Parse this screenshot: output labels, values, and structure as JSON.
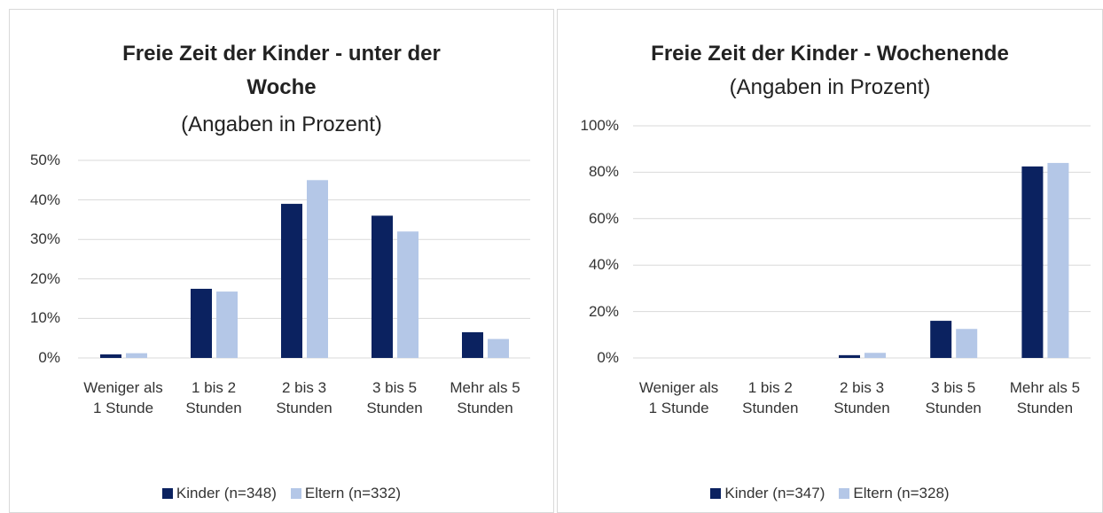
{
  "chart_data": [
    {
      "type": "bar",
      "title": "Freie Zeit der Kinder - unter der Woche",
      "subtitle": "(Angaben in Prozent)",
      "categories": [
        "Weniger als 1 Stunde",
        "1 bis 2 Stunden",
        "2 bis 3 Stunden",
        "3 bis 5 Stunden",
        "Mehr als 5 Stunden"
      ],
      "series": [
        {
          "name": "Kinder (n=348)",
          "color": "#0b2260",
          "values": [
            0.9,
            17.5,
            39,
            36,
            6.5
          ]
        },
        {
          "name": "Eltern (n=332)",
          "color": "#b4c7e7",
          "values": [
            1.2,
            16.8,
            45,
            32,
            4.8
          ]
        }
      ],
      "ylim": [
        0,
        50
      ],
      "yticks": [
        {
          "value": 0,
          "label": "0%"
        },
        {
          "value": 10,
          "label": "10%"
        },
        {
          "value": 20,
          "label": "20%"
        },
        {
          "value": 30,
          "label": "30%"
        },
        {
          "value": 40,
          "label": "40%"
        },
        {
          "value": 50,
          "label": "50%"
        }
      ],
      "grid": true,
      "legend": "bottom"
    },
    {
      "type": "bar",
      "title": "Freie Zeit der Kinder - Wochenende",
      "subtitle": "(Angaben in Prozent)",
      "categories": [
        "Weniger als 1 Stunde",
        "1 bis 2 Stunden",
        "2 bis 3 Stunden",
        "3 bis 5 Stunden",
        "Mehr als 5 Stunden"
      ],
      "series": [
        {
          "name": "Kinder (n=347)",
          "color": "#0b2260",
          "values": [
            0,
            0,
            1.2,
            16,
            82.5
          ]
        },
        {
          "name": "Eltern (n=328)",
          "color": "#b4c7e7",
          "values": [
            0,
            0,
            2.2,
            12.5,
            84
          ]
        }
      ],
      "ylim": [
        0,
        100
      ],
      "yticks": [
        {
          "value": 0,
          "label": "0%"
        },
        {
          "value": 20,
          "label": "20%"
        },
        {
          "value": 40,
          "label": "40%"
        },
        {
          "value": 60,
          "label": "60%"
        },
        {
          "value": 80,
          "label": "80%"
        },
        {
          "value": 100,
          "label": "100%"
        }
      ],
      "grid": true,
      "legend": "bottom"
    }
  ]
}
